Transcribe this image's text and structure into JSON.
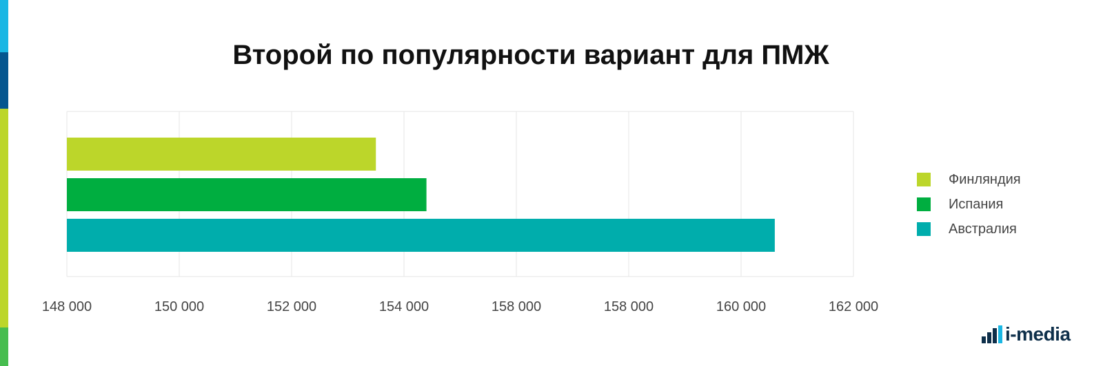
{
  "colors": {
    "stripe": [
      "#1ab7e4",
      "#05568f",
      "#bcd62a",
      "#47bd4f"
    ],
    "grid": "#e6e6e6",
    "tick_text": "#444444",
    "logo": "#0e2f4a"
  },
  "chart_data": {
    "type": "bar",
    "orientation": "horizontal",
    "title": "Второй по популярности вариант для ПМЖ",
    "xlabel": "",
    "ylabel": "",
    "x_tick_labels": [
      "148 000",
      "150 000",
      "152 000",
      "154 000",
      "158 000",
      "158 000",
      "160 000",
      "162 000"
    ],
    "grid": true,
    "legend_position": "right",
    "series": [
      {
        "name": "Финляндия",
        "value": 153500,
        "color": "#bcd62a"
      },
      {
        "name": "Испания",
        "value": 154400,
        "color": "#00ae40"
      },
      {
        "name": "Австралия",
        "value": 160600,
        "color": "#00adac"
      }
    ]
  },
  "logo": {
    "text": "i-media",
    "icon": "bar-steps-icon"
  }
}
